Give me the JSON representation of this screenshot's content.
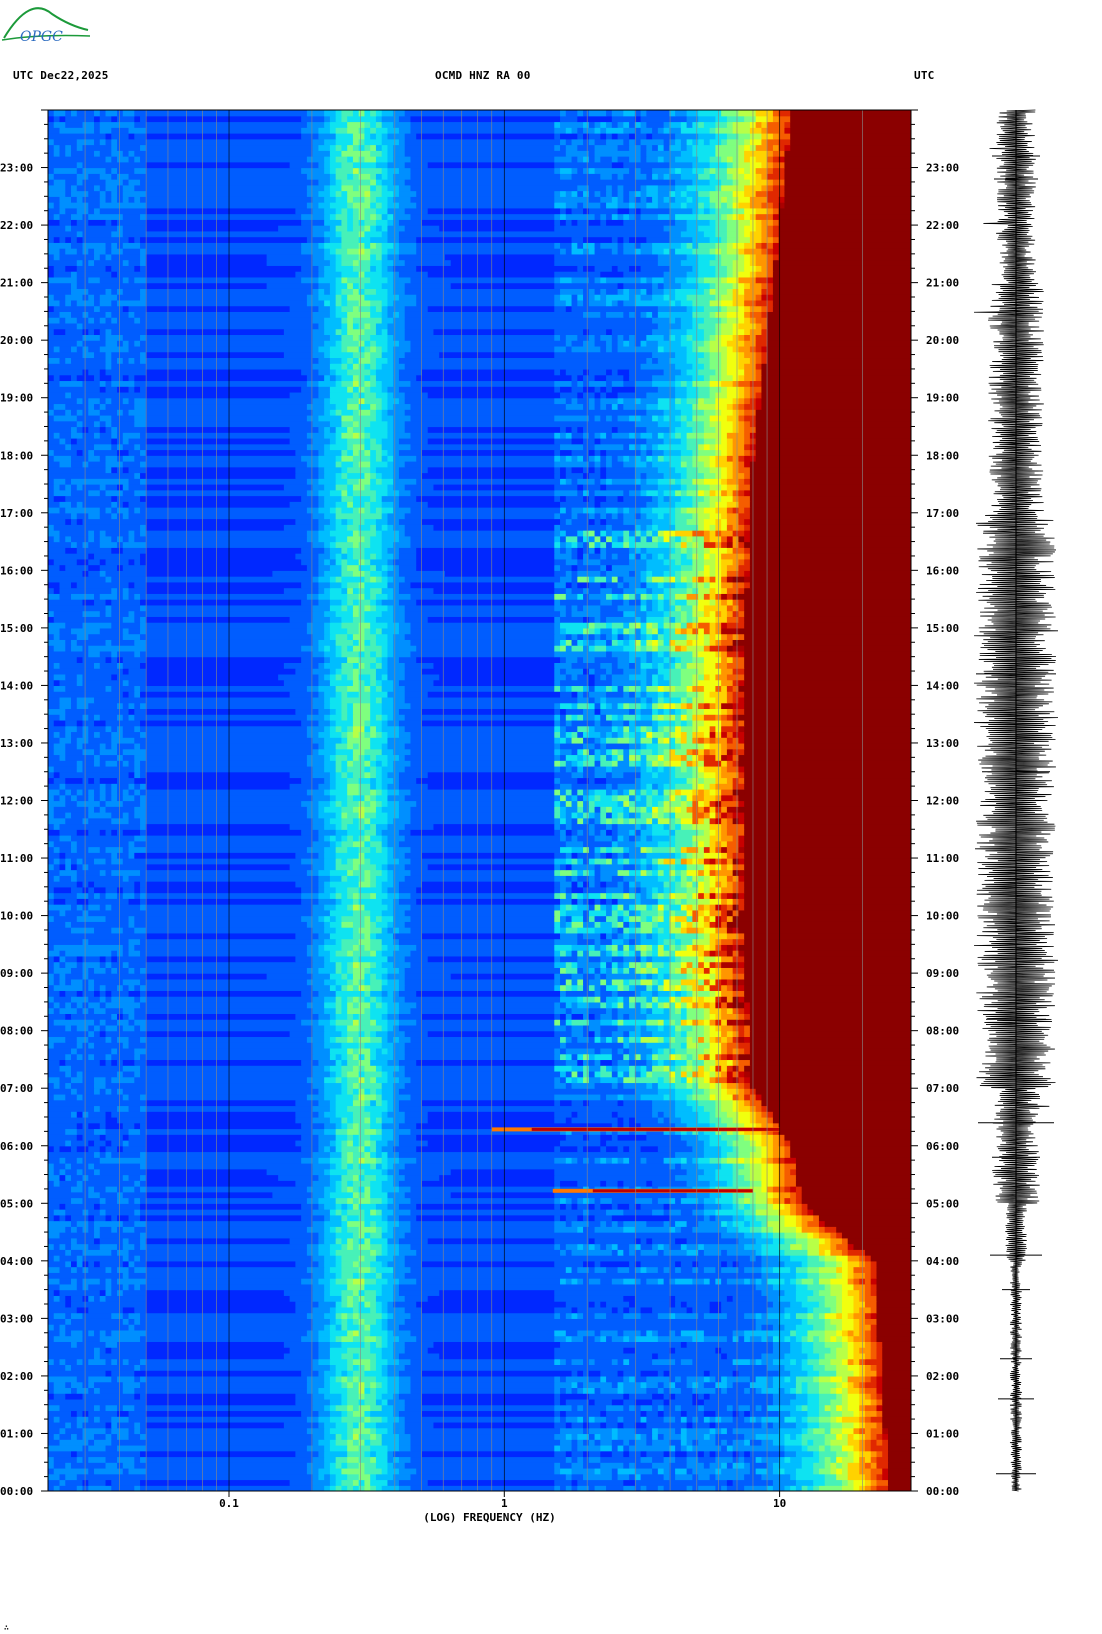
{
  "header": {
    "logo_text": "OPGC",
    "left_label": "UTC  Dec22,2025",
    "center_label": "OCMD HNZ RA 00",
    "right_label": "UTC"
  },
  "footer": {
    "corner_mark": "∴"
  },
  "chart_data": {
    "type": "heatmap",
    "title": "OCMD HNZ RA 00",
    "date": "Dec22,2025",
    "xlabel": "(LOG) FREQUENCY (HZ)",
    "x_scale": "log",
    "xlim": [
      0.022,
      30
    ],
    "x_ticks": [
      0.1,
      1,
      10
    ],
    "x_tick_labels": [
      "0.1",
      "1",
      "10"
    ],
    "ylabel": "UTC",
    "ylim": [
      "00:00",
      "24:00"
    ],
    "y_ticks": [
      "00:00",
      "01:00",
      "02:00",
      "03:00",
      "04:00",
      "05:00",
      "06:00",
      "07:00",
      "08:00",
      "09:00",
      "10:00",
      "11:00",
      "12:00",
      "13:00",
      "14:00",
      "15:00",
      "16:00",
      "17:00",
      "18:00",
      "19:00",
      "20:00",
      "21:00",
      "22:00",
      "23:00"
    ],
    "colormap": [
      "#00008b",
      "#0000ff",
      "#0078ff",
      "#00e0ff",
      "#7fff7f",
      "#ffff00",
      "#ff7800",
      "#d00000",
      "#8b0000"
    ],
    "saturation_edge_hz": [
      {
        "hour": 0,
        "hz": 25
      },
      {
        "hour": 4,
        "hz": 22
      },
      {
        "hour": 5,
        "hz": 12
      },
      {
        "hour": 6,
        "hz": 11
      },
      {
        "hour": 7,
        "hz": 8
      },
      {
        "hour": 9,
        "hz": 7.5
      },
      {
        "hour": 12,
        "hz": 7.5
      },
      {
        "hour": 15,
        "hz": 7.5
      },
      {
        "hour": 18,
        "hz": 8
      },
      {
        "hour": 20,
        "hz": 9
      },
      {
        "hour": 22,
        "hz": 10
      },
      {
        "hour": 24,
        "hz": 11
      }
    ],
    "microseism_band_hz": [
      0.22,
      0.4
    ],
    "events": [
      {
        "time": "05:13",
        "hz_range": [
          1.5,
          8
        ]
      },
      {
        "time": "06:17",
        "hz_range": [
          0.9,
          10
        ]
      }
    ],
    "seismogram": "waveform trace alongside the time axis"
  }
}
